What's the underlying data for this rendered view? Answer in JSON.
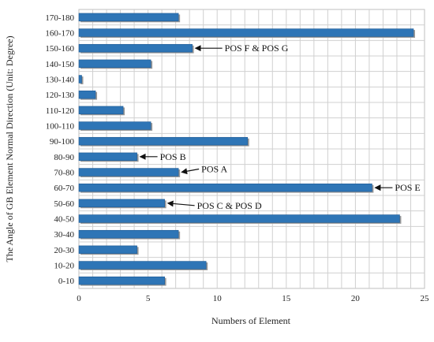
{
  "chart_data": {
    "type": "bar",
    "orientation": "horizontal",
    "title": "",
    "xlabel": "Numbers of Element",
    "ylabel": "The Angle of GB Element Normal Direction (Unit: Degree)",
    "xlim": [
      0,
      25
    ],
    "xticks": [
      0,
      5,
      10,
      15,
      20,
      25
    ],
    "grid": true,
    "legend": "none",
    "bar_color": "#2e75b6",
    "categories": [
      "0-10",
      "10-20",
      "20-30",
      "30-40",
      "40-50",
      "50-60",
      "60-70",
      "70-80",
      "80-90",
      "90-100",
      "100-110",
      "110-120",
      "120-130",
      "130-140",
      "140-150",
      "150-160",
      "160-170",
      "170-180"
    ],
    "values": [
      6.2,
      9.2,
      4.2,
      7.2,
      23.2,
      6.2,
      21.2,
      7.2,
      4.2,
      12.2,
      5.2,
      3.2,
      1.2,
      0.2,
      5.2,
      8.2,
      24.2,
      7.2
    ],
    "annotations": [
      {
        "text": "POS F & POS G",
        "category": "150-160"
      },
      {
        "text": "POS B",
        "category": "80-90"
      },
      {
        "text": "POS A",
        "category": "70-80"
      },
      {
        "text": "POS E",
        "category": "60-70"
      },
      {
        "text": "POS C & POS D",
        "category": "50-60"
      }
    ]
  }
}
